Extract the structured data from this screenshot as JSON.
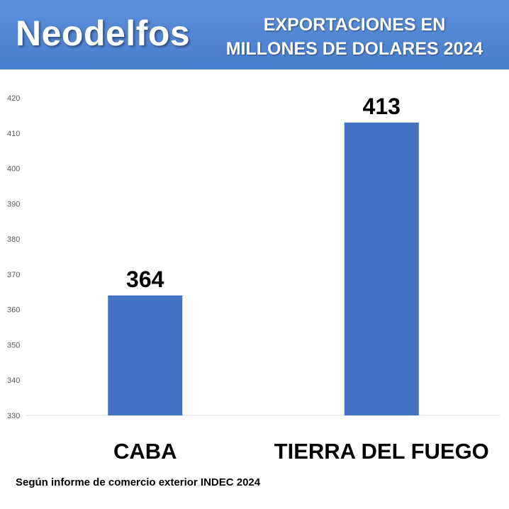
{
  "header": {
    "brand": "Neodelfos",
    "title_line1": "EXPORTACIONES EN",
    "title_line2": "MILLONES DE DOLARES 2024"
  },
  "footer": {
    "source": "Según informe de comercio exterior INDEC 2024"
  },
  "colors": {
    "banner": "#4a7fcf",
    "bar": "#4472c4",
    "gridline": "#d9d9d9"
  },
  "chart_data": {
    "type": "bar",
    "categories": [
      "CABA",
      "TIERRA DEL FUEGO"
    ],
    "values": [
      364,
      413
    ],
    "data_labels": [
      "364",
      "413"
    ],
    "ylim": [
      330,
      420
    ],
    "yticks": [
      330,
      340,
      350,
      360,
      370,
      380,
      390,
      400,
      410,
      420
    ],
    "grid": false,
    "legend": "none"
  }
}
